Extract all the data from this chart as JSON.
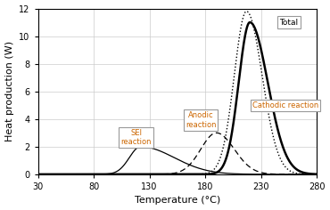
{
  "title": "",
  "xlabel": "Temperature (°C)",
  "ylabel": "Heat production (W)",
  "xlim": [
    30,
    280
  ],
  "ylim": [
    0,
    12
  ],
  "xticks": [
    30,
    80,
    130,
    180,
    230,
    280
  ],
  "yticks": [
    0,
    2,
    4,
    6,
    8,
    10,
    12
  ],
  "background_color": "#ffffff",
  "grid_color": "#cccccc",
  "sei_peak_x": 122,
  "sei_peak_y": 2.0,
  "sei_sigma_l": 10,
  "sei_sigma_r": 30,
  "anodic_peak_x": 190,
  "anodic_peak_y": 3.0,
  "anodic_sigma_l": 14,
  "anodic_sigma_r": 16,
  "cathodic_peak_x": 220,
  "cathodic_peak_y": 11.0,
  "cathodic_sigma_l": 10,
  "cathodic_sigma_r": 16,
  "total_peak_x": 217,
  "total_peak_y": 11.8,
  "total_sigma_l": 11,
  "total_sigma_r": 14,
  "annotation_color": "#000000",
  "annotation_text_color": "#cc6600",
  "box_edge_color": "#999999",
  "box_face_color": "#ffffff"
}
